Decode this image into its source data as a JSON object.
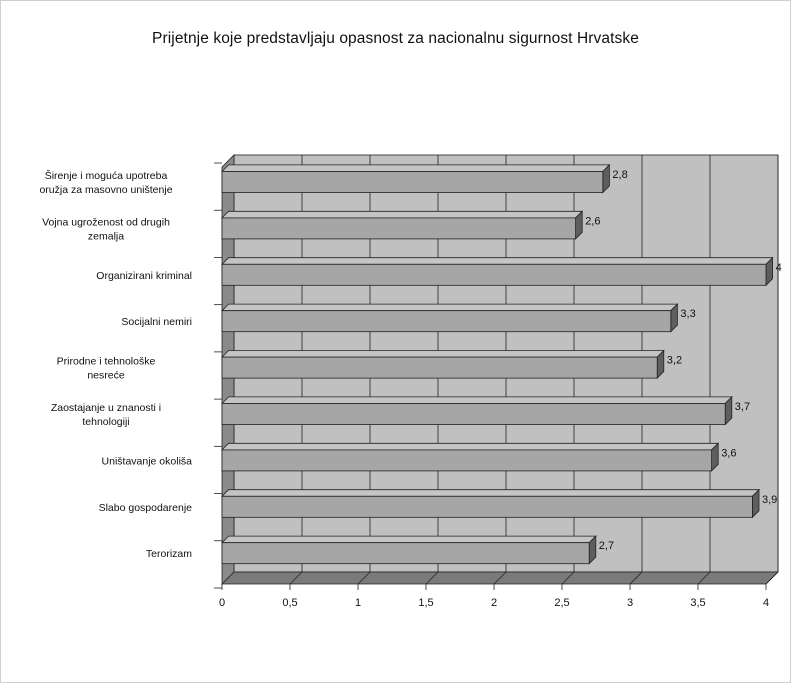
{
  "chart_data": {
    "type": "bar",
    "orientation": "horizontal",
    "style": "3d",
    "title": "Prijetnje koje predstavljaju opasnost za nacionalnu sigurnost Hrvatske",
    "categories": [
      "Širenje i moguća upotreba oružja za masovno uništenje",
      "Vojna ugroženost od drugih zemalja",
      "Organizirani kriminal",
      "Socijalni nemiri",
      "Prirodne i tehnološke nesreće",
      "Zaostajanje u znanosti i tehnologiji",
      "Uništavanje okoliša",
      "Slabo gospodarenje",
      "Terorizam"
    ],
    "category_lines": [
      [
        "Širenje i moguća upotreba",
        "oružja za masovno uništenje"
      ],
      [
        "Vojna ugroženost od drugih",
        "zemalja"
      ],
      [
        "Organizirani kriminal"
      ],
      [
        "Socijalni nemiri"
      ],
      [
        "Prirodne i tehnološke",
        "nesreće"
      ],
      [
        "Zaostajanje u znanosti i",
        "tehnologiji"
      ],
      [
        "Uništavanje okoliša"
      ],
      [
        "Slabo gospodarenje"
      ],
      [
        "Terorizam"
      ]
    ],
    "values": [
      2.8,
      2.6,
      4,
      3.3,
      3.2,
      3.7,
      3.6,
      3.9,
      2.7
    ],
    "value_labels": [
      "2,8",
      "2,6",
      "4",
      "3,3",
      "3,2",
      "3,7",
      "3,6",
      "3,9",
      "2,7"
    ],
    "xlim": [
      0,
      4
    ],
    "xticks": [
      0,
      0.5,
      1,
      1.5,
      2,
      2.5,
      3,
      3.5,
      4
    ],
    "xtick_labels": [
      "0",
      "0,5",
      "1",
      "1,5",
      "2",
      "2,5",
      "3",
      "3,5",
      "4"
    ],
    "grid": true,
    "legend": "none",
    "colors": {
      "bar_face": "#a6a6a6",
      "bar_top": "#c4c4c4",
      "bar_side": "#5e5e5e",
      "wall": "#c0c0c0",
      "wall_left": "#8a8a8a",
      "floor": "#7a7a7a",
      "grid": "#222222"
    }
  }
}
